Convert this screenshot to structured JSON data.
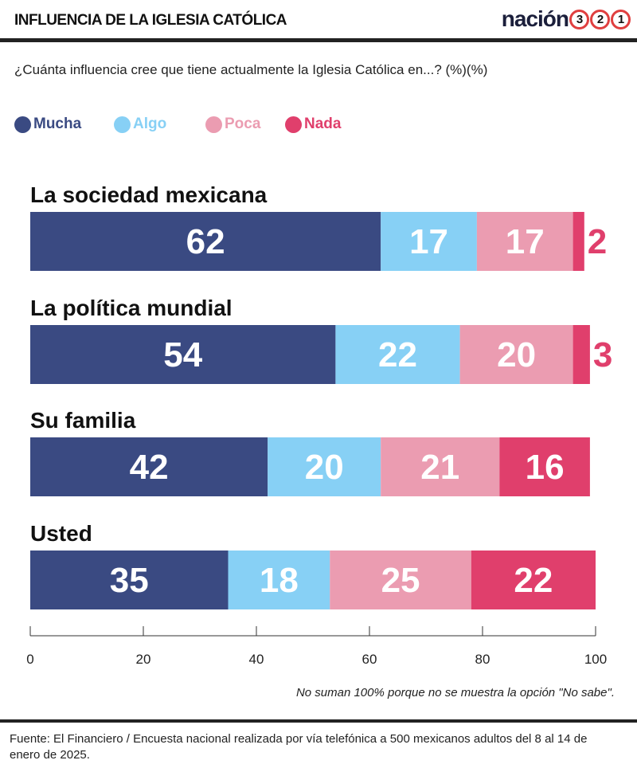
{
  "header": {
    "title": "INFLUENCIA DE LA IGLESIA CATÓLICA",
    "logo_text": "nación",
    "logo_numbers": [
      "3",
      "2",
      "1"
    ]
  },
  "subtitle": "¿Cuánta influencia cree que tiene actualmente la Iglesia Católica en...? (%)(%)",
  "note": "No suman 100% porque no se muestra la opción \"No sabe\".",
  "footer": "Fuente: El Financiero / Encuesta nacional realizada por vía telefónica a 500 mexicanos adultos del 8 al 14 de enero de 2025.",
  "chart_data": {
    "type": "bar",
    "orientation": "horizontal",
    "stacked": true,
    "categories": [
      "La sociedad mexicana",
      "La política mundial",
      "Su familia",
      "Usted"
    ],
    "series": [
      {
        "name": "Mucha",
        "color": "#3a4a82",
        "values": [
          62,
          54,
          42,
          35
        ]
      },
      {
        "name": "Algo",
        "color": "#87d0f5",
        "values": [
          17,
          22,
          20,
          18
        ]
      },
      {
        "name": "Poca",
        "color": "#eb9cb1",
        "values": [
          17,
          20,
          21,
          25
        ]
      },
      {
        "name": "Nada",
        "color": "#e03f6c",
        "values": [
          2,
          3,
          16,
          22
        ]
      }
    ],
    "xlim": [
      0,
      100
    ],
    "xticks": [
      "0",
      "20",
      "40",
      "60",
      "80",
      "100"
    ],
    "legend": "top-left"
  }
}
